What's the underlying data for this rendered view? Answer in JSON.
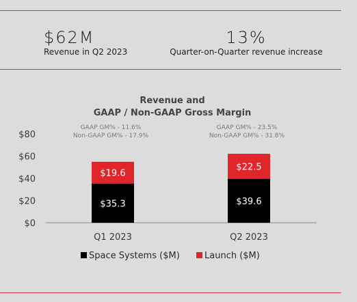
{
  "kpis": [
    {
      "value": "$62M",
      "label": "Revenue in Q2 2023"
    },
    {
      "value": "13%",
      "label": "Quarter-on-Quarter revenue increase"
    }
  ],
  "chart_data": {
    "type": "bar",
    "stacked": true,
    "title_lines": [
      "Revenue and",
      "GAAP / Non-GAAP Gross Margin"
    ],
    "categories": [
      "Q1 2023",
      "Q2 2023"
    ],
    "series": [
      {
        "name": "Space Systems ($M)",
        "values": [
          35.3,
          39.6
        ],
        "color": "#000000",
        "labels": [
          "$35.3",
          "$39.6"
        ]
      },
      {
        "name": "Launch ($M)",
        "values": [
          19.6,
          22.5
        ],
        "color": "#e0252b",
        "labels": [
          "$19.6",
          "$22.5"
        ]
      }
    ],
    "annotations": [
      [
        "GAAP GM% - 11.6%",
        "Non-GAAP GM% - 17.9%"
      ],
      [
        "GAAP GM% - 23.5%",
        "Non-GAAP GM% - 31.8%"
      ]
    ],
    "ylim": [
      0,
      80
    ],
    "yticks": [
      0,
      20,
      40,
      60,
      80
    ],
    "ytick_labels": [
      "$0",
      "$20",
      "$40",
      "$60",
      "$80"
    ],
    "grid": false,
    "legend_position": "bottom"
  },
  "colors": {
    "background": "#dcdcdc",
    "rule": "#d9363e",
    "launch": "#e0252b",
    "space_systems": "#000000"
  }
}
